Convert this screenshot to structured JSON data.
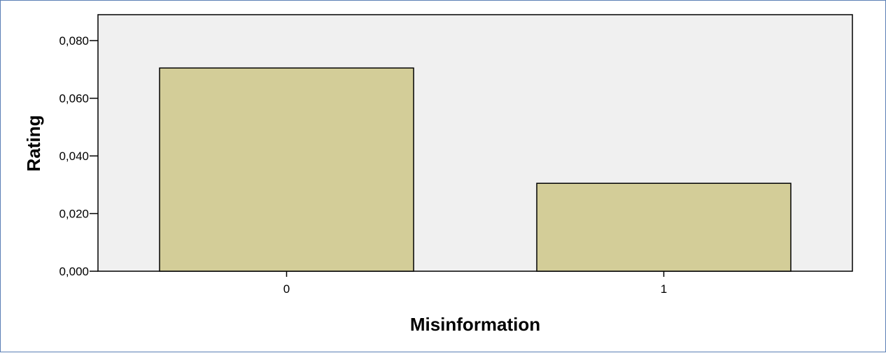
{
  "colors": {
    "plot_background": "#f0f0f0",
    "bar_fill": "#d3cd98",
    "bar_stroke": "#000000",
    "frame_border": "#5b7fb5"
  },
  "chart_data": {
    "type": "bar",
    "categories": [
      "0",
      "1"
    ],
    "values": [
      0.0705,
      0.0305
    ],
    "title": "",
    "xlabel": "Misinformation",
    "ylabel": "Rating",
    "ylim": [
      0,
      0.089
    ],
    "yticks": [
      0,
      0.02,
      0.04,
      0.06,
      0.08
    ],
    "ytick_labels": [
      "0,000",
      "0,020",
      "0,040",
      "0,060",
      "0,080"
    ],
    "grid": false,
    "legend": "none"
  }
}
